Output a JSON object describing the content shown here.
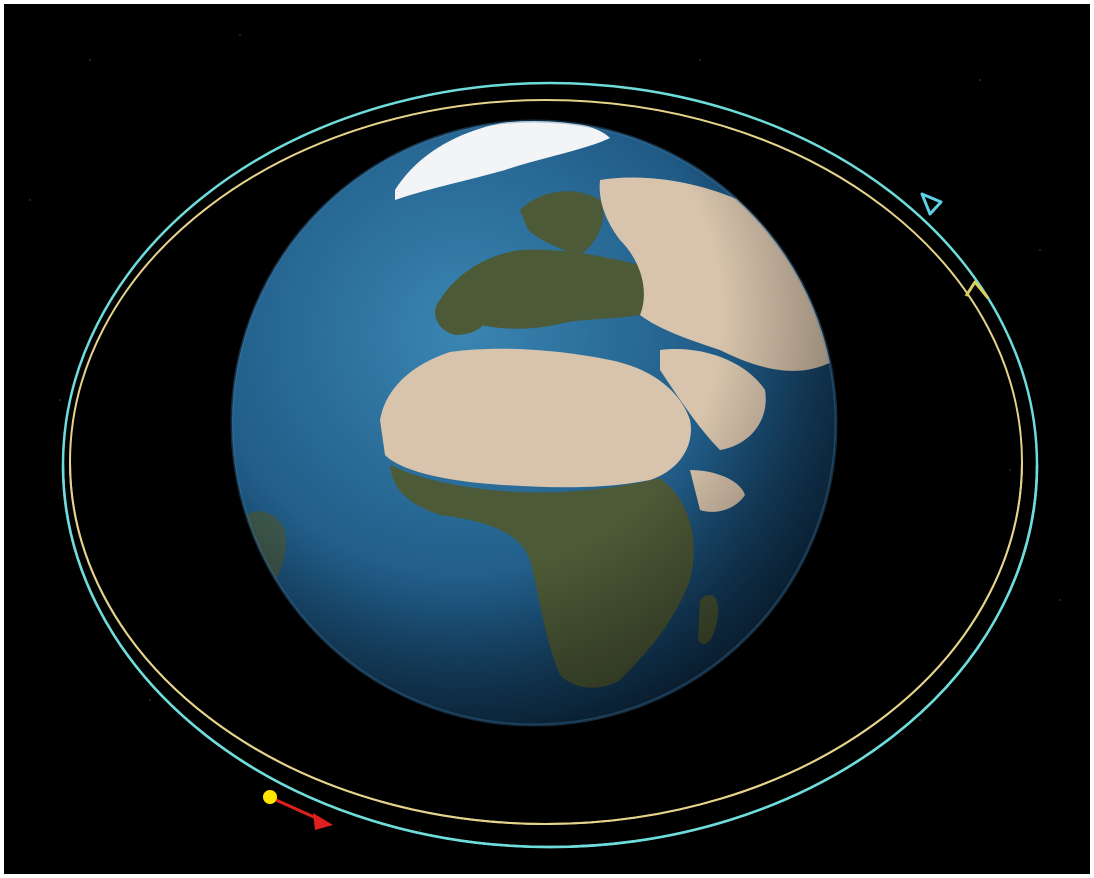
{
  "scene": {
    "kind": "orbit-visualization",
    "background_color": "#000000",
    "frame_color": "#ffffff"
  },
  "earth": {
    "ocean_color": "#1f5a85",
    "land_color": "#d8c4ac",
    "vegetation_color": "#4d5a37",
    "ice_color": "#f2f4f6"
  },
  "orbits": [
    {
      "name": "outer-orbit",
      "color": "#6fdcdc"
    },
    {
      "name": "inner-orbit",
      "color": "#e6d38a"
    }
  ],
  "markers": [
    {
      "name": "cyan-direction-arrow",
      "color": "#5fd0e6",
      "icon": "arrowhead-icon"
    },
    {
      "name": "yellow-direction-arrow",
      "color": "#d9d060",
      "icon": "arrowhead-icon"
    },
    {
      "name": "satellite-dot",
      "color": "#ffe600",
      "icon": "dot-icon"
    },
    {
      "name": "red-velocity-arrow",
      "color": "#e01f1f",
      "icon": "arrow-icon"
    }
  ]
}
